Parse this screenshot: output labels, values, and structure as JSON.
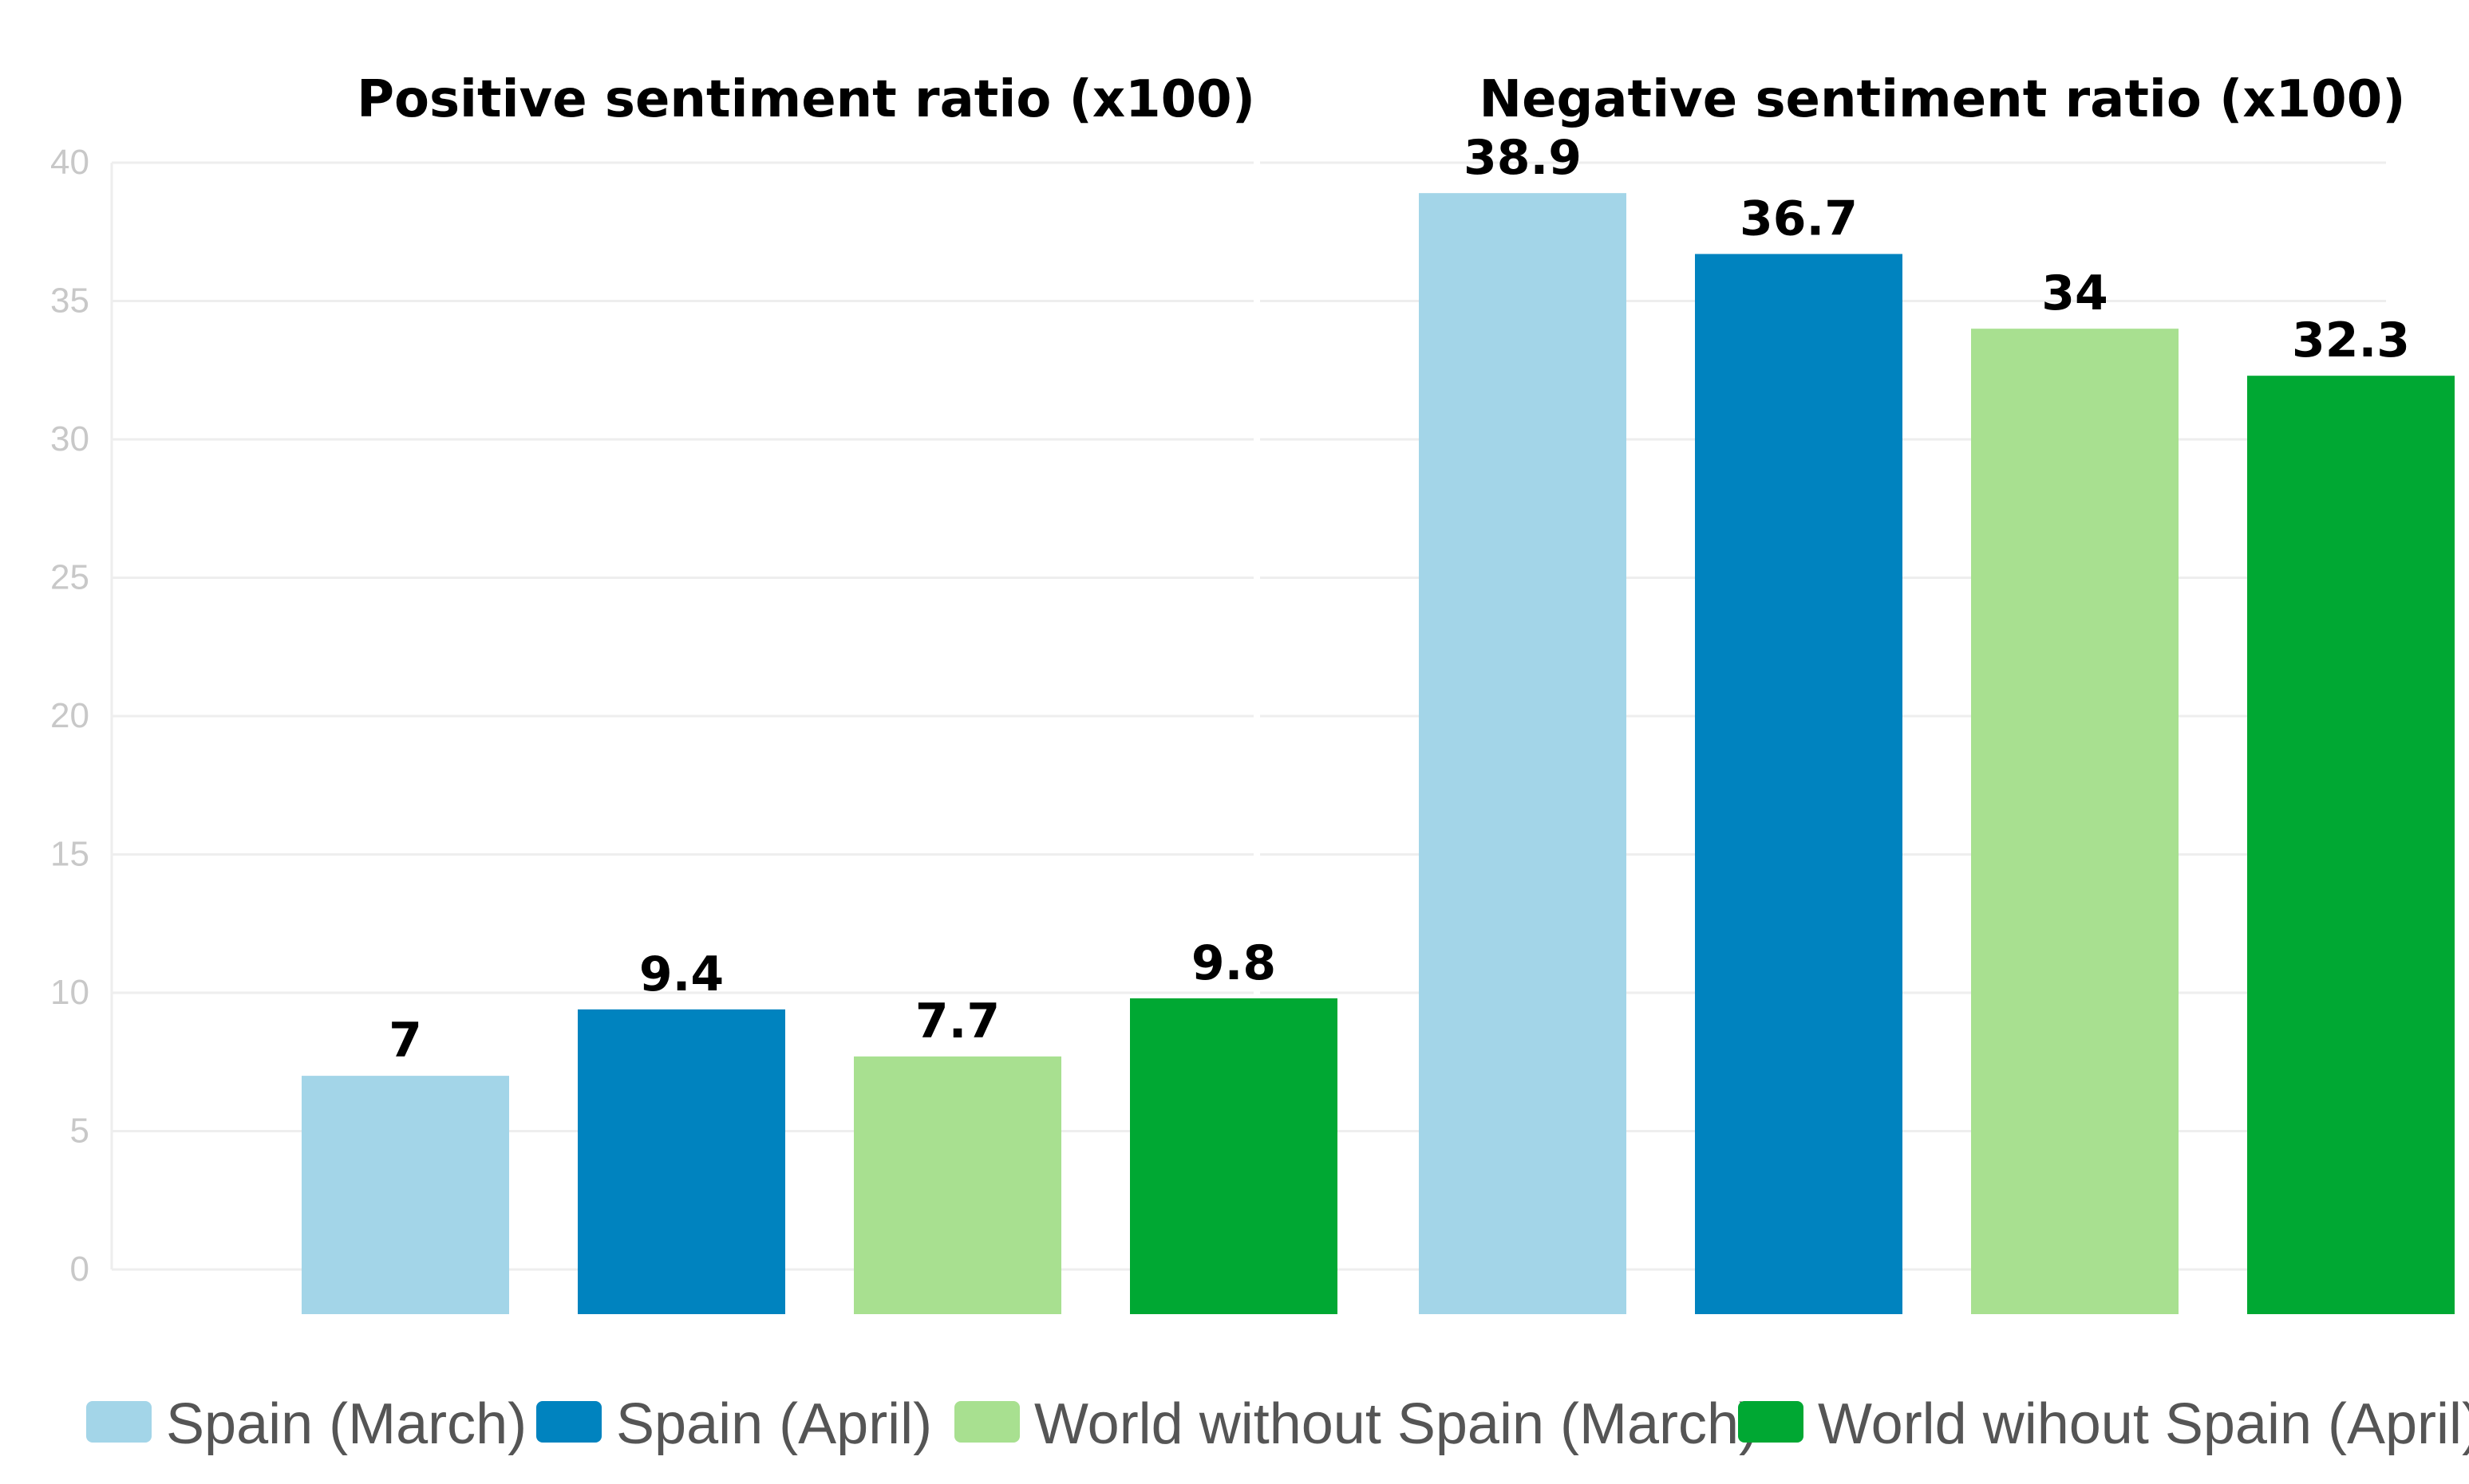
{
  "chart_data": {
    "type": "bar",
    "groups": [
      {
        "title": "Positive sentiment ratio (x100)",
        "values": [
          7,
          9.4,
          7.7,
          9.8
        ],
        "labels": [
          "7",
          "9.4",
          "7.7",
          "9.8"
        ]
      },
      {
        "title": "Negative sentiment ratio (x100)",
        "values": [
          38.9,
          36.7,
          34,
          32.3
        ],
        "labels": [
          "38.9",
          "36.7",
          "34",
          "32.3"
        ]
      }
    ],
    "series": [
      {
        "name": "Spain (March)",
        "color": "#a3d5e8"
      },
      {
        "name": "Spain (April)",
        "color": "#0083bf"
      },
      {
        "name": "World without Spain (March)",
        "color": "#a8e090"
      },
      {
        "name": "World wihout Spain (April)",
        "color": "#00a833"
      }
    ],
    "ylim": [
      0,
      40
    ],
    "yticks": [
      "0",
      "5",
      "10",
      "15",
      "20",
      "25",
      "30",
      "35",
      "40"
    ],
    "grid": true,
    "legend_position": "bottom"
  }
}
